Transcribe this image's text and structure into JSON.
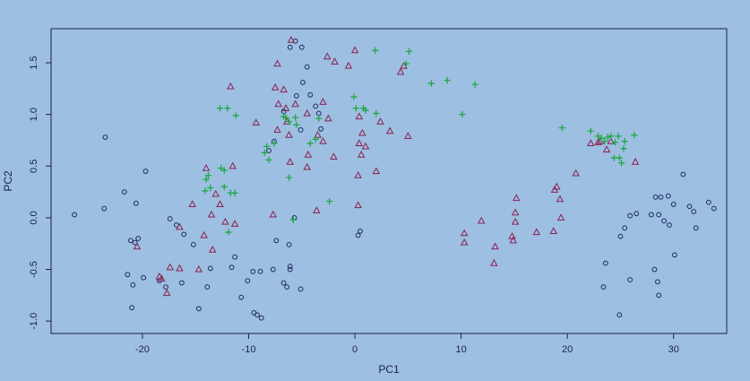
{
  "chart_data": {
    "type": "scatter",
    "x_label": "PC1",
    "y_label": "PC2",
    "xlim": [
      -28.6,
      35.0
    ],
    "ylim": [
      -1.12,
      1.83
    ],
    "xticks": [
      -20,
      -10,
      0,
      10,
      20,
      30
    ],
    "yticks": [
      {
        "value": -1.0,
        "label": "-1.0"
      },
      -0.5,
      {
        "value": 0.0,
        "label": "0.0"
      },
      0.5,
      {
        "value": 1.0,
        "label": "1.0"
      },
      1.5
    ],
    "series": [
      {
        "marker": "circle",
        "color": "#1c2a5c",
        "x": [
          -26.4,
          -23.5,
          -23.6,
          -21.7,
          -20.6,
          -19.7,
          -21.1,
          -20.7,
          -20.4,
          -21.4,
          -20.9,
          -21.0,
          -19.9,
          -18.4,
          -17.8,
          -17.4,
          -16.8,
          -16.1,
          -15.2,
          -16.3,
          -14.7,
          -13.9,
          -13.6,
          -11.6,
          -11.3,
          -10.7,
          -10.1,
          -9.6,
          -8.9,
          -9.5,
          -9.2,
          -8.8,
          -7.7,
          -7.4,
          -6.7,
          -6.4,
          -6.1,
          -6.1,
          -5.1,
          -5.7,
          -6.2,
          -6.1,
          -5.6,
          -5.0,
          -4.5,
          -4.9,
          -4.2,
          -5.5,
          -6.7,
          -3.7,
          -3.4,
          -7.6,
          -8.1,
          -5.1,
          -3.2,
          0.5,
          0.3,
          25.0,
          25.4,
          25.9,
          26.5,
          27.9,
          28.3,
          28.8,
          29.5,
          28.6,
          29.1,
          29.6,
          30.0,
          30.9,
          31.5,
          31.9,
          32.1,
          33.3,
          33.8,
          30.1,
          28.2,
          28.5,
          28.6,
          25.9,
          23.6,
          23.4,
          24.9
        ],
        "y": [
          0.03,
          0.78,
          0.09,
          0.25,
          0.14,
          0.45,
          -0.22,
          -0.24,
          -0.2,
          -0.55,
          -0.65,
          -0.87,
          -0.58,
          -0.61,
          -0.67,
          -0.01,
          -0.07,
          -0.16,
          -0.26,
          -0.63,
          -0.88,
          -0.67,
          -0.49,
          -0.48,
          -0.38,
          -0.77,
          -0.61,
          -0.52,
          -0.52,
          -0.92,
          -0.94,
          -0.97,
          -0.5,
          -0.22,
          -0.63,
          -0.67,
          -0.5,
          -0.47,
          -0.69,
          0.0,
          -0.26,
          1.65,
          1.71,
          1.65,
          1.46,
          1.31,
          1.19,
          1.18,
          1.03,
          1.08,
          1.01,
          0.74,
          0.65,
          0.85,
          0.86,
          -0.13,
          -0.17,
          -0.18,
          -0.1,
          0.02,
          0.04,
          0.03,
          0.2,
          0.2,
          0.21,
          0.03,
          -0.03,
          -0.07,
          0.13,
          0.42,
          0.11,
          0.06,
          -0.1,
          0.15,
          0.09,
          -0.36,
          -0.5,
          -0.62,
          -0.75,
          -0.6,
          -0.44,
          -0.67,
          -0.94
        ]
      },
      {
        "marker": "triangle",
        "color": "#8c2150",
        "x": [
          -6.0,
          -7.3,
          -11.7,
          -14.0,
          -15.3,
          -16.5,
          -13.5,
          -12.7,
          -13.1,
          -11.5,
          -12.2,
          -11.3,
          -13.4,
          -14.2,
          -14.7,
          -16.5,
          -17.4,
          -18.2,
          -17.7,
          -18.4,
          -20.5,
          -9.3,
          -7.5,
          -6.7,
          -7.2,
          -7.3,
          -6.2,
          -6.4,
          -6.5,
          -5.6,
          -4.5,
          -7.7,
          -6.1,
          -3.6,
          -4.4,
          -3.5,
          -4.5,
          -3.0,
          -1.9,
          -2.6,
          -0.6,
          0.0,
          0.4,
          0.7,
          0.4,
          1.0,
          0.6,
          0.3,
          2.0,
          2.4,
          3.3,
          4.3,
          4.6,
          5.0,
          -3.0,
          -2.0,
          -2.5,
          0.3,
          10.3,
          10.3,
          11.9,
          13.2,
          13.1,
          14.8,
          14.9,
          15.1,
          15.2,
          15.1,
          17.1,
          18.7,
          19.0,
          18.8,
          19.3,
          19.4,
          20.8,
          22.2,
          23.1,
          26.4,
          24.1,
          23.7,
          22.9
        ],
        "y": [
          1.72,
          1.49,
          1.27,
          0.48,
          0.13,
          -0.09,
          0.03,
          0.13,
          0.23,
          0.5,
          -0.04,
          -0.06,
          -0.31,
          -0.17,
          -0.5,
          -0.49,
          -0.48,
          -0.59,
          -0.73,
          -0.57,
          -0.28,
          0.92,
          1.26,
          1.24,
          1.1,
          0.85,
          0.8,
          0.93,
          1.06,
          1.1,
          1.01,
          0.03,
          0.54,
          0.07,
          0.61,
          0.8,
          0.49,
          0.74,
          1.51,
          1.56,
          1.47,
          1.62,
          0.98,
          0.82,
          0.72,
          0.69,
          0.61,
          0.41,
          0.45,
          0.93,
          0.84,
          1.41,
          1.47,
          0.79,
          1.12,
          0.59,
          0.96,
          0.12,
          -0.15,
          -0.24,
          -0.03,
          -0.28,
          -0.44,
          -0.18,
          -0.22,
          0.05,
          0.19,
          -0.04,
          -0.14,
          -0.13,
          0.3,
          0.27,
          0.18,
          0.0,
          0.43,
          0.72,
          0.74,
          0.54,
          0.74,
          0.66,
          0.73
        ]
      },
      {
        "marker": "plus",
        "color": "#1fa845",
        "x": [
          -12.7,
          -12.0,
          -11.2,
          1.9,
          5.1,
          4.8,
          7.2,
          8.7,
          11.3,
          10.1,
          19.5,
          22.2,
          22.9,
          23.5,
          24.1,
          24.5,
          24.8,
          25.3,
          25.4,
          26.3,
          24.9,
          25.1,
          24.4,
          23.8,
          23.2,
          -6.7,
          -6.5,
          -5.6,
          -6.2,
          -5.5,
          -7.6,
          -8.3,
          -8.5,
          -8.1,
          -6.2,
          -5.8,
          -4.2,
          -3.4,
          -2.4,
          -3.7,
          1.0,
          -0.1,
          0.1,
          0.8,
          2.0,
          -12.6,
          -12.3,
          -13.8,
          -14.0,
          -14.1,
          -13.6,
          -11.7,
          -11.3,
          -11.9,
          -12.3
        ],
        "y": [
          1.06,
          1.06,
          0.99,
          1.62,
          1.61,
          1.49,
          1.3,
          1.33,
          1.29,
          1.0,
          0.87,
          0.84,
          0.79,
          0.74,
          0.79,
          0.73,
          0.79,
          0.67,
          0.74,
          0.8,
          0.58,
          0.53,
          0.58,
          0.78,
          0.77,
          0.98,
          0.97,
          0.97,
          0.93,
          0.9,
          0.72,
          0.69,
          0.63,
          0.56,
          0.39,
          -0.02,
          0.72,
          0.96,
          0.16,
          0.76,
          1.04,
          1.17,
          1.06,
          1.06,
          1.01,
          0.48,
          0.46,
          0.41,
          0.37,
          0.26,
          0.29,
          0.24,
          0.24,
          -0.14,
          0.3
        ]
      }
    ]
  }
}
